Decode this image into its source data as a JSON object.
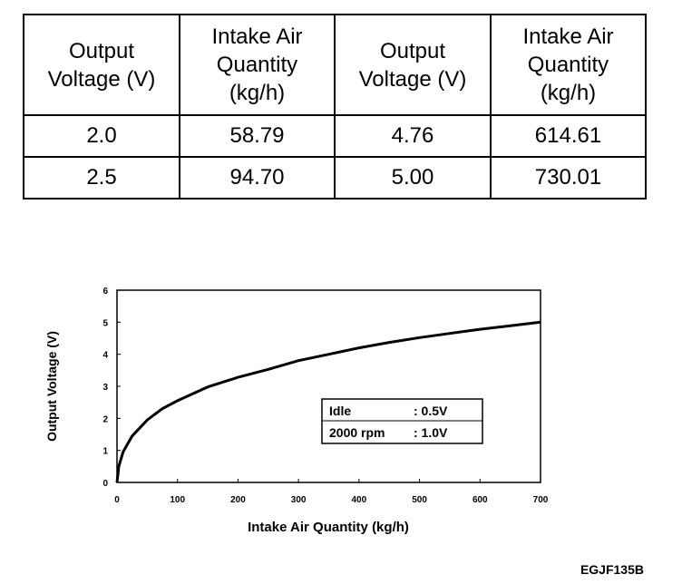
{
  "table": {
    "headers": [
      "Output Voltage (V)",
      "Intake Air Quantity (kg/h)",
      "Output Voltage (V)",
      "Intake Air Quantity (kg/h)"
    ],
    "rows": [
      [
        "2.0",
        "58.79",
        "4.76",
        "614.61"
      ],
      [
        "2.5",
        "94.70",
        "5.00",
        "730.01"
      ]
    ]
  },
  "chart_data": {
    "type": "line",
    "xlabel": "Intake Air Quantity (kg/h)",
    "ylabel": "Output Voltage (V)",
    "xlim": [
      0,
      700
    ],
    "ylim": [
      0,
      6
    ],
    "x_ticks": [
      "0",
      "100",
      "200",
      "300",
      "400",
      "500",
      "600",
      "700"
    ],
    "y_ticks": [
      "0",
      "1",
      "2",
      "3",
      "4",
      "5",
      "6"
    ],
    "grid": false,
    "series": [
      {
        "x": [
          0,
          3,
          10,
          25,
          50,
          75,
          100,
          150,
          200,
          250,
          300,
          350,
          400,
          450,
          500,
          550,
          600,
          650,
          700
        ],
        "y": [
          0.0,
          0.5,
          0.95,
          1.45,
          1.95,
          2.3,
          2.55,
          2.98,
          3.28,
          3.53,
          3.8,
          4.0,
          4.2,
          4.37,
          4.52,
          4.65,
          4.78,
          4.89,
          5.0
        ]
      }
    ],
    "legend_box": {
      "rows": [
        {
          "label": "Idle",
          "value": ": 0.5V"
        },
        {
          "label": "2000 rpm",
          "value": ": 1.0V"
        }
      ]
    }
  },
  "figure_code": "EGJF135B"
}
